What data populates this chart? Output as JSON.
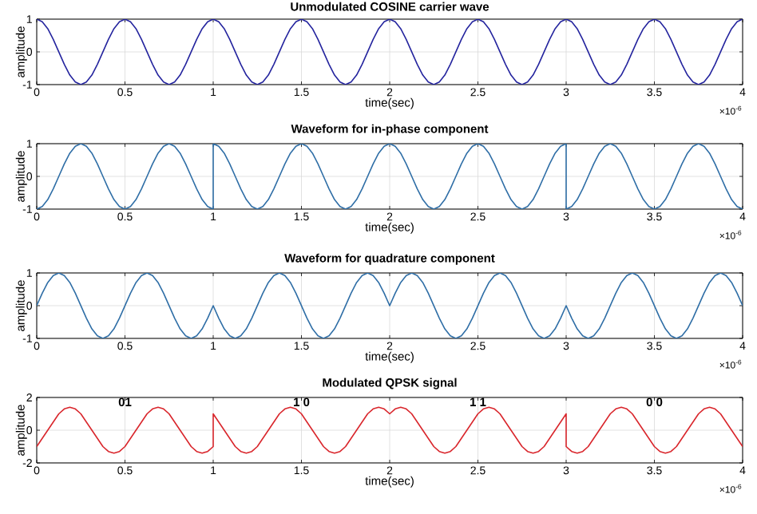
{
  "chart_data": [
    {
      "type": "line",
      "title": "Unmodulated COSINE carrier wave",
      "xlabel": "time(sec)",
      "ylabel": "amplitude",
      "xlim": [
        0,
        4
      ],
      "ylim": [
        -1,
        1
      ],
      "xticks": [
        0,
        0.5,
        1,
        1.5,
        2,
        2.5,
        3,
        3.5,
        4
      ],
      "yticks": [
        -1,
        0,
        1
      ],
      "grid": true,
      "annotations": [
        "×10$^{-6}$"
      ],
      "x": [
        0,
        0.03125,
        0.0625,
        0.09375,
        0.125,
        0.15625,
        0.1875,
        0.21875,
        0.25,
        0.28125,
        0.3125,
        0.34375,
        0.375,
        0.40625,
        0.4375,
        0.46875,
        0.5,
        0.53125,
        0.5625,
        0.59375,
        0.625,
        0.65625,
        0.6875,
        0.71875,
        0.75,
        0.78125,
        0.8125,
        0.84375,
        0.875,
        0.90625,
        0.9375,
        0.96875,
        1,
        1.03125,
        1.0625,
        1.09375,
        1.125,
        1.15625,
        1.1875,
        1.21875,
        1.25,
        1.28125,
        1.3125,
        1.34375,
        1.375,
        1.40625,
        1.4375,
        1.46875,
        1.5,
        1.53125,
        1.5625,
        1.59375,
        1.625,
        1.65625,
        1.6875,
        1.71875,
        1.75,
        1.78125,
        1.8125,
        1.84375,
        1.875,
        1.90625,
        1.9375,
        1.96875,
        2,
        2.03125,
        2.0625,
        2.09375,
        2.125,
        2.15625,
        2.1875,
        2.21875,
        2.25,
        2.28125,
        2.3125,
        2.34375,
        2.375,
        2.40625,
        2.4375,
        2.46875,
        2.5,
        2.53125,
        2.5625,
        2.59375,
        2.625,
        2.65625,
        2.6875,
        2.71875,
        2.75,
        2.78125,
        2.8125,
        2.84375,
        2.875,
        2.90625,
        2.9375,
        2.96875,
        3,
        3.03125,
        3.0625,
        3.09375,
        3.125,
        3.15625,
        3.1875,
        3.21875,
        3.25,
        3.28125,
        3.3125,
        3.34375,
        3.375,
        3.40625,
        3.4375,
        3.46875,
        3.5,
        3.53125,
        3.5625,
        3.59375,
        3.625,
        3.65625,
        3.6875,
        3.71875,
        3.75,
        3.78125,
        3.8125,
        3.84375,
        3.875,
        3.90625,
        3.9375,
        3.96875,
        4
      ],
      "series": [
        {
          "color": "#24249e",
          "values": [
            1,
            0.92,
            0.71,
            0.38,
            0,
            -0.38,
            -0.71,
            -0.92,
            -1,
            -0.92,
            -0.71,
            -0.38,
            0,
            0.38,
            0.71,
            0.92,
            1,
            0.92,
            0.71,
            0.38,
            0,
            -0.38,
            -0.71,
            -0.92,
            -1,
            -0.92,
            -0.71,
            -0.38,
            0,
            0.38,
            0.71,
            0.92,
            1,
            0.92,
            0.71,
            0.38,
            0,
            -0.38,
            -0.71,
            -0.92,
            -1,
            -0.92,
            -0.71,
            -0.38,
            0,
            0.38,
            0.71,
            0.92,
            1,
            0.92,
            0.71,
            0.38,
            0,
            -0.38,
            -0.71,
            -0.92,
            -1,
            -0.92,
            -0.71,
            -0.38,
            0,
            0.38,
            0.71,
            0.92,
            1,
            0.92,
            0.71,
            0.38,
            0,
            -0.38,
            -0.71,
            -0.92,
            -1,
            -0.92,
            -0.71,
            -0.38,
            0,
            0.38,
            0.71,
            0.92,
            1,
            0.92,
            0.71,
            0.38,
            0,
            -0.38,
            -0.71,
            -0.92,
            -1,
            -0.92,
            -0.71,
            -0.38,
            0,
            0.38,
            0.71,
            0.92,
            1,
            0.92,
            0.71,
            0.38,
            0,
            -0.38,
            -0.71,
            -0.92,
            -1,
            -0.92,
            -0.71,
            -0.38,
            0,
            0.38,
            0.71,
            0.92,
            1,
            0.92,
            0.71,
            0.38,
            0,
            -0.38,
            -0.71,
            -0.92,
            -1,
            -0.92,
            -0.71,
            -0.38,
            0,
            0.38,
            0.71,
            0.92,
            1
          ]
        }
      ]
    },
    {
      "type": "line",
      "title": "Waveform for in-phase component",
      "xlabel": "time(sec)",
      "ylabel": "amplitude",
      "xlim": [
        0,
        4
      ],
      "ylim": [
        -1,
        1
      ],
      "xticks": [
        0,
        0.5,
        1,
        1.5,
        2,
        2.5,
        3,
        3.5,
        4
      ],
      "yticks": [
        -1,
        0,
        1
      ],
      "grid": true,
      "annotations": [
        "×10$^{-6}$"
      ],
      "x": [
        0,
        0.03125,
        0.0625,
        0.09375,
        0.125,
        0.15625,
        0.1875,
        0.21875,
        0.25,
        0.28125,
        0.3125,
        0.34375,
        0.375,
        0.40625,
        0.4375,
        0.46875,
        0.5,
        0.53125,
        0.5625,
        0.59375,
        0.625,
        0.65625,
        0.6875,
        0.71875,
        0.75,
        0.78125,
        0.8125,
        0.84375,
        0.875,
        0.90625,
        0.9375,
        0.96875,
        1,
        1,
        1.03125,
        1.0625,
        1.09375,
        1.125,
        1.15625,
        1.1875,
        1.21875,
        1.25,
        1.28125,
        1.3125,
        1.34375,
        1.375,
        1.40625,
        1.4375,
        1.46875,
        1.5,
        1.53125,
        1.5625,
        1.59375,
        1.625,
        1.65625,
        1.6875,
        1.71875,
        1.75,
        1.78125,
        1.8125,
        1.84375,
        1.875,
        1.90625,
        1.9375,
        1.96875,
        2,
        2.03125,
        2.0625,
        2.09375,
        2.125,
        2.15625,
        2.1875,
        2.21875,
        2.25,
        2.28125,
        2.3125,
        2.34375,
        2.375,
        2.40625,
        2.4375,
        2.46875,
        2.5,
        2.53125,
        2.5625,
        2.59375,
        2.625,
        2.65625,
        2.6875,
        2.71875,
        2.75,
        2.78125,
        2.8125,
        2.84375,
        2.875,
        2.90625,
        2.9375,
        2.96875,
        3,
        3,
        3.03125,
        3.0625,
        3.09375,
        3.125,
        3.15625,
        3.1875,
        3.21875,
        3.25,
        3.28125,
        3.3125,
        3.34375,
        3.375,
        3.40625,
        3.4375,
        3.46875,
        3.5,
        3.53125,
        3.5625,
        3.59375,
        3.625,
        3.65625,
        3.6875,
        3.71875,
        3.75,
        3.78125,
        3.8125,
        3.84375,
        3.875,
        3.90625,
        3.9375,
        3.96875,
        4
      ],
      "series": [
        {
          "color": "#2f6ea6",
          "values": [
            -1,
            -0.92,
            -0.71,
            -0.38,
            0,
            0.38,
            0.71,
            0.92,
            1,
            0.92,
            0.71,
            0.38,
            0,
            -0.38,
            -0.71,
            -0.92,
            -1,
            -0.92,
            -0.71,
            -0.38,
            0,
            0.38,
            0.71,
            0.92,
            1,
            0.92,
            0.71,
            0.38,
            0,
            -0.38,
            -0.71,
            -0.92,
            -1,
            1,
            0.92,
            0.71,
            0.38,
            0,
            -0.38,
            -0.71,
            -0.92,
            -1,
            -0.92,
            -0.71,
            -0.38,
            0,
            0.38,
            0.71,
            0.92,
            1,
            0.92,
            0.71,
            0.38,
            0,
            -0.38,
            -0.71,
            -0.92,
            -1,
            -0.92,
            -0.71,
            -0.38,
            0,
            0.38,
            0.71,
            0.92,
            1,
            0.92,
            0.71,
            0.38,
            0,
            -0.38,
            -0.71,
            -0.92,
            -1,
            -0.92,
            -0.71,
            -0.38,
            0,
            0.38,
            0.71,
            0.92,
            1,
            0.92,
            0.71,
            0.38,
            0,
            -0.38,
            -0.71,
            -0.92,
            -1,
            -0.92,
            -0.71,
            -0.38,
            0,
            0.38,
            0.71,
            0.92,
            1,
            -1,
            -0.92,
            -0.71,
            -0.38,
            0,
            0.38,
            0.71,
            0.92,
            1,
            0.92,
            0.71,
            0.38,
            0,
            -0.38,
            -0.71,
            -0.92,
            -1,
            -0.92,
            -0.71,
            -0.38,
            0,
            0.38,
            0.71,
            0.92,
            1,
            0.92,
            0.71,
            0.38,
            0,
            -0.38,
            -0.71,
            -0.92,
            -1
          ]
        }
      ]
    },
    {
      "type": "line",
      "title": "Waveform for quadrature component",
      "xlabel": "time(sec)",
      "ylabel": "amplitude",
      "xlim": [
        0,
        4
      ],
      "ylim": [
        -1,
        1
      ],
      "xticks": [
        0,
        0.5,
        1,
        1.5,
        2,
        2.5,
        3,
        3.5,
        4
      ],
      "yticks": [
        -1,
        0,
        1
      ],
      "grid": true,
      "annotations": [
        "×10$^{-6}$"
      ],
      "x": [
        0,
        0.03125,
        0.0625,
        0.09375,
        0.125,
        0.15625,
        0.1875,
        0.21875,
        0.25,
        0.28125,
        0.3125,
        0.34375,
        0.375,
        0.40625,
        0.4375,
        0.46875,
        0.5,
        0.53125,
        0.5625,
        0.59375,
        0.625,
        0.65625,
        0.6875,
        0.71875,
        0.75,
        0.78125,
        0.8125,
        0.84375,
        0.875,
        0.90625,
        0.9375,
        0.96875,
        1,
        1.03125,
        1.0625,
        1.09375,
        1.125,
        1.15625,
        1.1875,
        1.21875,
        1.25,
        1.28125,
        1.3125,
        1.34375,
        1.375,
        1.40625,
        1.4375,
        1.46875,
        1.5,
        1.53125,
        1.5625,
        1.59375,
        1.625,
        1.65625,
        1.6875,
        1.71875,
        1.75,
        1.78125,
        1.8125,
        1.84375,
        1.875,
        1.90625,
        1.9375,
        1.96875,
        2,
        2.03125,
        2.0625,
        2.09375,
        2.125,
        2.15625,
        2.1875,
        2.21875,
        2.25,
        2.28125,
        2.3125,
        2.34375,
        2.375,
        2.40625,
        2.4375,
        2.46875,
        2.5,
        2.53125,
        2.5625,
        2.59375,
        2.625,
        2.65625,
        2.6875,
        2.71875,
        2.75,
        2.78125,
        2.8125,
        2.84375,
        2.875,
        2.90625,
        2.9375,
        2.96875,
        3,
        3.03125,
        3.0625,
        3.09375,
        3.125,
        3.15625,
        3.1875,
        3.21875,
        3.25,
        3.28125,
        3.3125,
        3.34375,
        3.375,
        3.40625,
        3.4375,
        3.46875,
        3.5,
        3.53125,
        3.5625,
        3.59375,
        3.625,
        3.65625,
        3.6875,
        3.71875,
        3.75,
        3.78125,
        3.8125,
        3.84375,
        3.875,
        3.90625,
        3.9375,
        3.96875,
        4
      ],
      "series": [
        {
          "color": "#2f6ea6",
          "values": [
            0,
            0.38,
            0.71,
            0.92,
            1,
            0.92,
            0.71,
            0.38,
            0,
            -0.38,
            -0.71,
            -0.92,
            -1,
            -0.92,
            -0.71,
            -0.38,
            0,
            0.38,
            0.71,
            0.92,
            1,
            0.92,
            0.71,
            0.38,
            0,
            -0.38,
            -0.71,
            -0.92,
            -1,
            -0.92,
            -0.71,
            -0.38,
            0,
            -0.38,
            -0.71,
            -0.92,
            -1,
            -0.92,
            -0.71,
            -0.38,
            0,
            0.38,
            0.71,
            0.92,
            1,
            0.92,
            0.71,
            0.38,
            0,
            -0.38,
            -0.71,
            -0.92,
            -1,
            -0.92,
            -0.71,
            -0.38,
            0,
            0.38,
            0.71,
            0.92,
            1,
            0.92,
            0.71,
            0.38,
            0,
            0.38,
            0.71,
            0.92,
            1,
            0.92,
            0.71,
            0.38,
            0,
            -0.38,
            -0.71,
            -0.92,
            -1,
            -0.92,
            -0.71,
            -0.38,
            0,
            0.38,
            0.71,
            0.92,
            1,
            0.92,
            0.71,
            0.38,
            0,
            -0.38,
            -0.71,
            -0.92,
            -1,
            -0.92,
            -0.71,
            -0.38,
            0,
            -0.38,
            -0.71,
            -0.92,
            -1,
            -0.92,
            -0.71,
            -0.38,
            0,
            0.38,
            0.71,
            0.92,
            1,
            0.92,
            0.71,
            0.38,
            0,
            -0.38,
            -0.71,
            -0.92,
            -1,
            -0.92,
            -0.71,
            -0.38,
            0,
            0.38,
            0.71,
            0.92,
            1,
            0.92,
            0.71,
            0.38,
            0
          ]
        }
      ]
    },
    {
      "type": "line",
      "title": "Modulated QPSK signal",
      "xlabel": "time(sec)",
      "ylabel": "amplitude",
      "xlim": [
        0,
        4
      ],
      "ylim": [
        -2,
        2
      ],
      "xticks": [
        0,
        0.5,
        1,
        1.5,
        2,
        2.5,
        3,
        3.5,
        4
      ],
      "yticks": [
        -2,
        0,
        2
      ],
      "grid": true,
      "annotations": [
        "×10$^{-6}$",
        "01",
        "1 0",
        "1 1",
        "0 0"
      ],
      "x": [
        0,
        0.03125,
        0.0625,
        0.09375,
        0.125,
        0.15625,
        0.1875,
        0.21875,
        0.25,
        0.28125,
        0.3125,
        0.34375,
        0.375,
        0.40625,
        0.4375,
        0.46875,
        0.5,
        0.53125,
        0.5625,
        0.59375,
        0.625,
        0.65625,
        0.6875,
        0.71875,
        0.75,
        0.78125,
        0.8125,
        0.84375,
        0.875,
        0.90625,
        0.9375,
        0.96875,
        1,
        1,
        1.03125,
        1.0625,
        1.09375,
        1.125,
        1.15625,
        1.1875,
        1.21875,
        1.25,
        1.28125,
        1.3125,
        1.34375,
        1.375,
        1.40625,
        1.4375,
        1.46875,
        1.5,
        1.53125,
        1.5625,
        1.59375,
        1.625,
        1.65625,
        1.6875,
        1.71875,
        1.75,
        1.78125,
        1.8125,
        1.84375,
        1.875,
        1.90625,
        1.9375,
        1.96875,
        2,
        2.03125,
        2.0625,
        2.09375,
        2.125,
        2.15625,
        2.1875,
        2.21875,
        2.25,
        2.28125,
        2.3125,
        2.34375,
        2.375,
        2.40625,
        2.4375,
        2.46875,
        2.5,
        2.53125,
        2.5625,
        2.59375,
        2.625,
        2.65625,
        2.6875,
        2.71875,
        2.75,
        2.78125,
        2.8125,
        2.84375,
        2.875,
        2.90625,
        2.9375,
        2.96875,
        3,
        3,
        3.03125,
        3.0625,
        3.09375,
        3.125,
        3.15625,
        3.1875,
        3.21875,
        3.25,
        3.28125,
        3.3125,
        3.34375,
        3.375,
        3.40625,
        3.4375,
        3.46875,
        3.5,
        3.53125,
        3.5625,
        3.59375,
        3.625,
        3.65625,
        3.6875,
        3.71875,
        3.75,
        3.78125,
        3.8125,
        3.84375,
        3.875,
        3.90625,
        3.9375,
        3.96875,
        4
      ],
      "series": [
        {
          "color": "#d9262c",
          "values": [
            -1,
            -0.5,
            0,
            0.5,
            1,
            1.3,
            1.4,
            1.3,
            1,
            0.5,
            0,
            -0.5,
            -1,
            -1.3,
            -1.4,
            -1.3,
            -1,
            -0.5,
            0,
            0.5,
            1,
            1.3,
            1.4,
            1.3,
            1,
            0.5,
            0,
            -0.5,
            -1,
            -1.3,
            -1.4,
            -1.3,
            -1,
            1,
            0.5,
            0,
            -0.5,
            -1,
            -1.3,
            -1.4,
            -1.3,
            -1,
            -0.5,
            0,
            0.5,
            1,
            1.3,
            1.4,
            1.3,
            1,
            0.5,
            0,
            -0.5,
            -1,
            -1.3,
            -1.4,
            -1.3,
            -1,
            -0.5,
            0,
            0.5,
            1,
            1.3,
            1.4,
            1.3,
            1,
            1.3,
            1.4,
            1.3,
            1,
            0.5,
            0,
            -0.5,
            -1,
            -1.3,
            -1.4,
            -1.3,
            -1,
            -0.5,
            0,
            0.5,
            1,
            1.3,
            1.4,
            1.3,
            1,
            0.5,
            0,
            -0.5,
            -1,
            -1.3,
            -1.4,
            -1.3,
            -1,
            -0.5,
            0,
            0.5,
            1,
            -1,
            -1.3,
            -1.4,
            -1.3,
            -1,
            -0.5,
            0,
            0.5,
            1,
            1.3,
            1.4,
            1.3,
            1,
            0.5,
            0,
            -0.5,
            -1,
            -1.3,
            -1.4,
            -1.3,
            -1,
            -0.5,
            0,
            0.5,
            1,
            1.3,
            1.4,
            1.3,
            1,
            0.5,
            0,
            -0.5,
            -1
          ]
        }
      ]
    }
  ]
}
